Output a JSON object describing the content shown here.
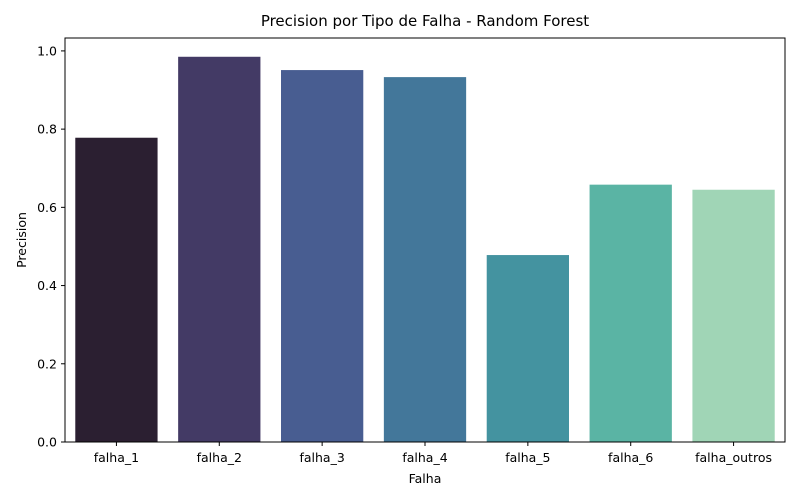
{
  "chart_data": {
    "type": "bar",
    "title": "Precision por Tipo de Falha - Random Forest",
    "xlabel": "Falha",
    "ylabel": "Precision",
    "categories": [
      "falha_1",
      "falha_2",
      "falha_3",
      "falha_4",
      "falha_5",
      "falha_6",
      "falha_outros"
    ],
    "values": [
      0.778,
      0.985,
      0.951,
      0.933,
      0.478,
      0.658,
      0.645
    ],
    "colors": [
      "#2b1f31",
      "#433a65",
      "#485d91",
      "#43779a",
      "#4493a0",
      "#5ab4a4",
      "#a0d5b6"
    ],
    "ylim": [
      0,
      1.033
    ],
    "yticks": [
      {
        "value": 0.0,
        "label": "0.0"
      },
      {
        "value": 0.2,
        "label": "0.2"
      },
      {
        "value": 0.4,
        "label": "0.4"
      },
      {
        "value": 0.6,
        "label": "0.6"
      },
      {
        "value": 0.8,
        "label": "0.8"
      },
      {
        "value": 1.0,
        "label": "1.0"
      }
    ],
    "grid": false,
    "legend": "none"
  }
}
